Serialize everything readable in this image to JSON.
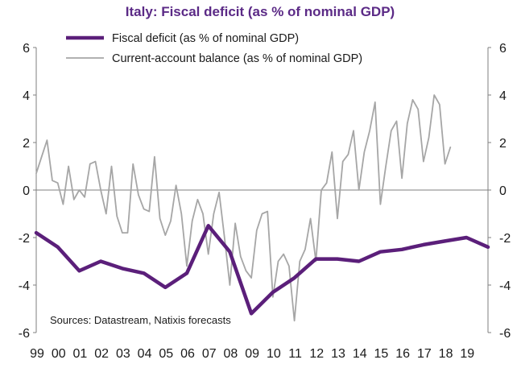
{
  "chart_data": {
    "type": "line",
    "title": "Italy: Fiscal deficit (as % of nominal GDP)",
    "source": "Sources: Datastream, Natixis forecasts",
    "ylim": [
      -6,
      6
    ],
    "y_ticks": [
      "6",
      "4",
      "2",
      "0",
      "-2",
      "-4",
      "-6"
    ],
    "y_tick_values": [
      6,
      4,
      2,
      0,
      -2,
      -4,
      -6
    ],
    "x_ticks": [
      "99",
      "00",
      "01",
      "02",
      "03",
      "04",
      "05",
      "06",
      "07",
      "08",
      "09",
      "10",
      "11",
      "12",
      "13",
      "14",
      "15",
      "16",
      "17",
      "18",
      "19"
    ],
    "xlim": [
      1999,
      2020
    ],
    "zero_line": true,
    "legend_position": "top-center",
    "series": [
      {
        "name": "Fiscal deficit (as % of nominal GDP)",
        "color": "#5b1f7a",
        "x": [
          1999,
          2000,
          2001,
          2002,
          2003,
          2004,
          2005,
          2006,
          2007,
          2008,
          2009,
          2010,
          2011,
          2012,
          2013,
          2014,
          2015,
          2016,
          2017,
          2018,
          2019,
          2020
        ],
        "values": [
          -1.8,
          -2.4,
          -3.4,
          -3.0,
          -3.3,
          -3.5,
          -4.1,
          -3.5,
          -1.5,
          -2.6,
          -5.2,
          -4.3,
          -3.7,
          -2.9,
          -2.9,
          -3.0,
          -2.6,
          -2.5,
          -2.3,
          -2.15,
          -2.0,
          -2.4
        ]
      },
      {
        "name": "Current-account balance (as % of nominal GDP)",
        "color": "#a6a6a6",
        "x": [
          1999,
          1999.25,
          1999.5,
          1999.75,
          2000,
          2000.25,
          2000.5,
          2000.75,
          2001,
          2001.25,
          2001.5,
          2001.75,
          2002,
          2002.25,
          2002.5,
          2002.75,
          2003,
          2003.25,
          2003.5,
          2003.75,
          2004,
          2004.25,
          2004.5,
          2004.75,
          2005,
          2005.25,
          2005.5,
          2005.75,
          2006,
          2006.25,
          2006.5,
          2006.75,
          2007,
          2007.25,
          2007.5,
          2007.75,
          2008,
          2008.25,
          2008.5,
          2008.75,
          2009,
          2009.25,
          2009.5,
          2009.75,
          2010,
          2010.25,
          2010.5,
          2010.75,
          2011,
          2011.25,
          2011.5,
          2011.75,
          2012,
          2012.25,
          2012.5,
          2012.75,
          2013,
          2013.25,
          2013.5,
          2013.75,
          2014,
          2014.25,
          2014.5,
          2014.75,
          2015,
          2015.25,
          2015.5,
          2015.75,
          2016,
          2016.25,
          2016.5,
          2016.75,
          2017,
          2017.25,
          2017.5,
          2017.75,
          2018,
          2018.25
        ],
        "values": [
          0.7,
          1.4,
          2.1,
          0.4,
          0.3,
          -0.6,
          1.0,
          -0.4,
          0.0,
          -0.3,
          1.1,
          1.2,
          0.0,
          -1.0,
          1.0,
          -1.1,
          -1.8,
          -1.8,
          1.1,
          -0.2,
          -0.8,
          -0.9,
          1.4,
          -1.2,
          -1.9,
          -1.3,
          0.2,
          -1.0,
          -3.2,
          -1.3,
          -0.4,
          -1.0,
          -2.7,
          -1.0,
          -0.1,
          -2.0,
          -4.0,
          -1.4,
          -2.8,
          -3.4,
          -3.7,
          -1.7,
          -1.0,
          -0.9,
          -4.5,
          -3.0,
          -2.7,
          -3.2,
          -5.5,
          -3.0,
          -2.5,
          -1.2,
          -3.0,
          0.0,
          0.3,
          1.6,
          -1.2,
          1.2,
          1.5,
          2.5,
          0.0,
          1.6,
          2.5,
          3.7,
          -0.6,
          1.0,
          2.5,
          2.9,
          0.5,
          2.8,
          3.8,
          3.4,
          1.2,
          2.2,
          4.0,
          3.6,
          1.1,
          1.8
        ]
      }
    ]
  }
}
